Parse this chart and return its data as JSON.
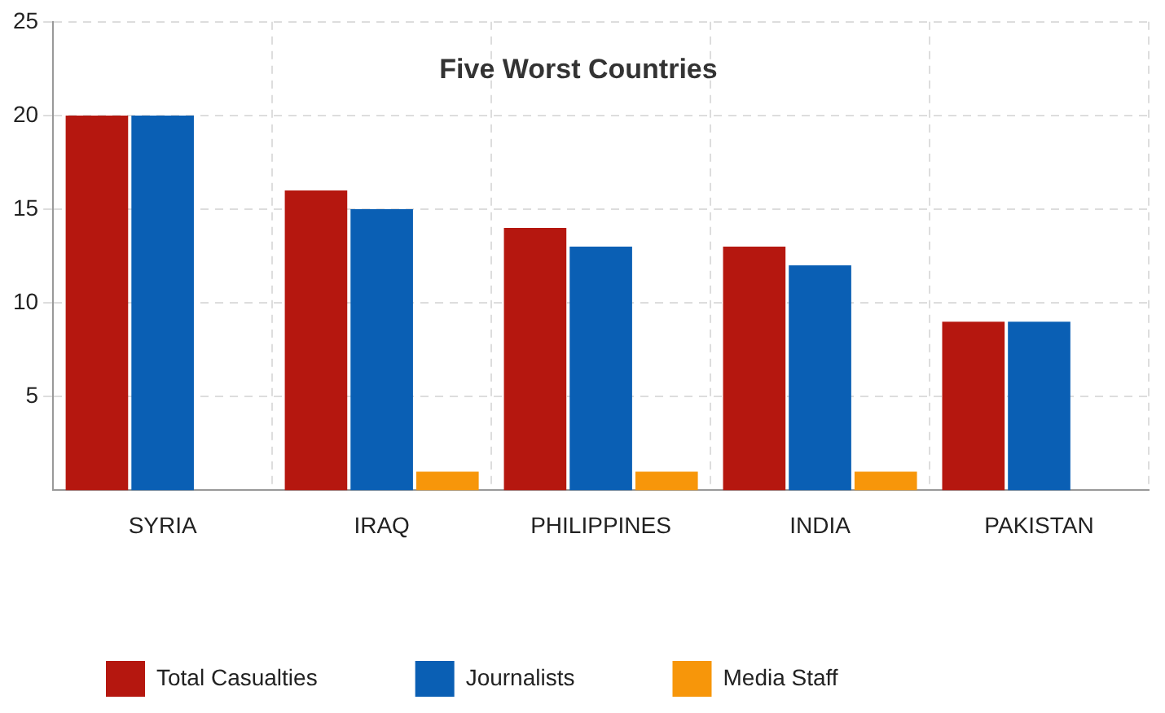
{
  "chart_data": {
    "type": "bar",
    "title": "Five Worst Countries",
    "categories": [
      "SYRIA",
      "IRAQ",
      "PHILIPPINES",
      "INDIA",
      "PAKISTAN"
    ],
    "series": [
      {
        "name": "Total Casualties",
        "color": "#b5170f",
        "values": [
          20,
          16,
          14,
          13,
          9
        ]
      },
      {
        "name": "Journalists",
        "color": "#0a5fb4",
        "values": [
          20,
          15,
          13,
          12,
          9
        ]
      },
      {
        "name": "Media Staff",
        "color": "#f7960a",
        "values": [
          0,
          1,
          1,
          1,
          0
        ]
      }
    ],
    "ylim": [
      0,
      25
    ],
    "yticks": [
      5,
      10,
      15,
      20,
      25
    ],
    "grid": true,
    "legend": "bottom left"
  }
}
